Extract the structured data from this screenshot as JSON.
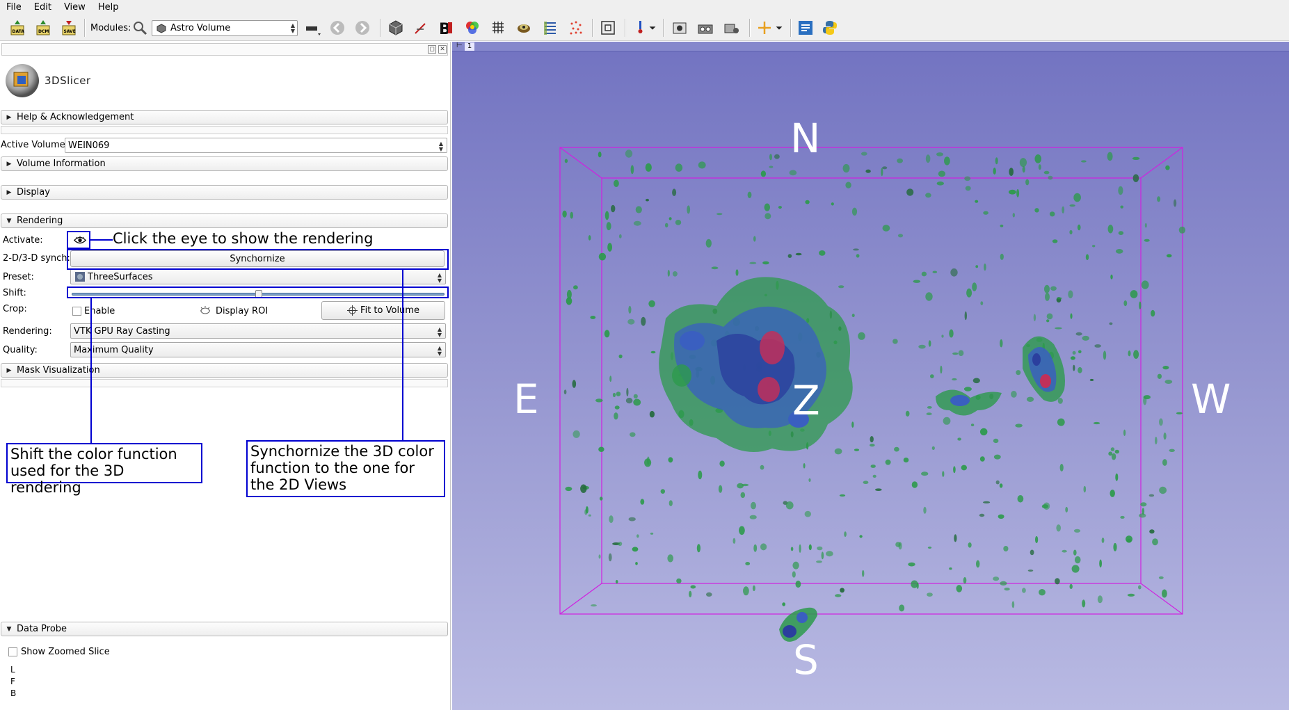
{
  "menu": [
    "File",
    "Edit",
    "View",
    "Help"
  ],
  "toolbar": {
    "modules_label": "Modules:",
    "module_selected": "Astro Volume",
    "icons": [
      "data-icon",
      "dcm-icon",
      "save-icon",
      "search-icon",
      "layout-icon",
      "back-icon",
      "forward-icon",
      "cube-icon",
      "markup-icon",
      "b-icon",
      "colors-icon",
      "grid-icon",
      "models-icon",
      "list-icon",
      "scatter-icon",
      "fit-icon",
      "pointer-icon",
      "screenshot-icon",
      "camera-icon",
      "scene-icon",
      "crosshair-icon",
      "extension-icon",
      "python-icon"
    ]
  },
  "logo_text": "3DSlicer",
  "sections": {
    "help": "Help & Acknowledgement",
    "volume_info": "Volume Information",
    "display": "Display",
    "rendering": "Rendering",
    "mask": "Mask Visualization",
    "data_probe": "Data Probe"
  },
  "active_volume": {
    "label": "Active Volume",
    "value": "WEIN069"
  },
  "rendering": {
    "activate_label": "Activate:",
    "synch_label": "2-D/3-D synch:",
    "synch_button": "Synchornize",
    "preset_label": "Preset:",
    "preset_value": "ThreeSurfaces",
    "shift_label": "Shift:",
    "shift_value": 0.5,
    "crop_label": "Crop:",
    "enable_label": "Enable",
    "display_roi_label": "Display ROI",
    "fit_button": "Fit to Volume",
    "rendering_label": "Rendering:",
    "rendering_value": "VTK GPU Ray Casting",
    "quality_label": "Quality:",
    "quality_value": "Maximum Quality"
  },
  "annotations": {
    "eye": "Click the eye to show the rendering",
    "shift_line1": "Shift the color function",
    "shift_line2": "used for the 3D rendering",
    "sync_line1": "Synchornize the 3D color",
    "sync_line2": "function to the one for",
    "sync_line3": "the 2D Views"
  },
  "data_probe": {
    "show_zoomed": "Show Zoomed Slice",
    "l": "L",
    "f": "F",
    "b": "B"
  },
  "view": {
    "number": "1",
    "orient_n": "N",
    "orient_s": "S",
    "orient_e": "E",
    "orient_w": "W",
    "orient_z": "Z",
    "box_color": "#d020e0"
  }
}
